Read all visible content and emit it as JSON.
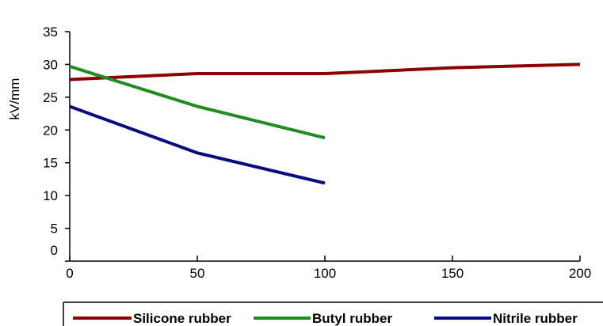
{
  "chart_data": {
    "type": "line",
    "title": "",
    "xlabel": "",
    "ylabel": "kV/mm",
    "xlim": [
      0,
      200
    ],
    "ylim": [
      0,
      35
    ],
    "xticks": [
      0,
      50,
      100,
      150,
      200
    ],
    "yticks": [
      0,
      5,
      10,
      15,
      20,
      25,
      30,
      35
    ],
    "grid": false,
    "legend_position": "bottom",
    "series": [
      {
        "name": "Silicone rubber",
        "color": "#8b0000",
        "x": [
          0,
          50,
          100,
          150,
          200
        ],
        "y": [
          27.7,
          28.6,
          28.6,
          29.5,
          30.0
        ]
      },
      {
        "name": "Butyl rubber",
        "color": "#1e8c1e",
        "x": [
          0,
          50,
          100
        ],
        "y": [
          29.7,
          23.6,
          18.8
        ]
      },
      {
        "name": "Nitrile rubber",
        "color": "#0a0a80",
        "x": [
          0,
          50,
          100
        ],
        "y": [
          23.6,
          16.5,
          11.9
        ]
      }
    ]
  }
}
